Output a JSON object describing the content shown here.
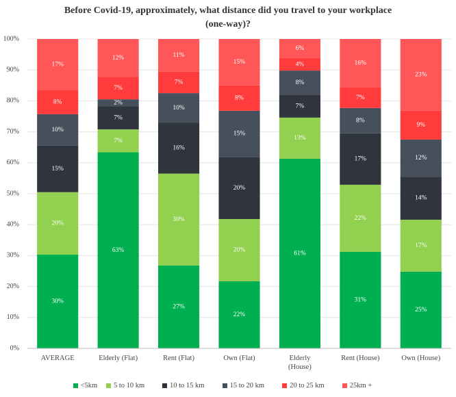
{
  "chart_data": {
    "type": "stacked_bar",
    "title": "Before Covid-19, approximately, what distance did you travel  to your workplace (one-way)?",
    "categories": [
      "AVERAGE",
      "Elderly (Flat)",
      "Rent (Flat)",
      "Own (Flat)",
      "Elderly (House)",
      "Rent (House)",
      "Own (House)"
    ],
    "series": [
      {
        "name": "<5km",
        "color": "#00b050",
        "values": [
          30.3,
          63.4,
          26.8,
          21.7,
          61.3,
          31.2,
          24.8
        ],
        "value_labels": [
          "30%",
          "63%",
          "27%",
          "22%",
          "61%",
          "31%",
          "25%"
        ]
      },
      {
        "name": "5 to 10 km",
        "color": "#92d050",
        "values": [
          20.2,
          7.4,
          29.7,
          20.1,
          13.3,
          21.7,
          16.8
        ],
        "value_labels": [
          "20%",
          "7%",
          "30%",
          "20%",
          "13%",
          "22%",
          "17%"
        ]
      },
      {
        "name": "10 to 15 km",
        "color": "#2f343d",
        "values": [
          15.0,
          7.4,
          16.4,
          20.1,
          7.4,
          16.6,
          13.9
        ],
        "value_labels": [
          "15%",
          "7%",
          "16%",
          "20%",
          "7%",
          "17%",
          "14%"
        ]
      },
      {
        "name": "15 to 20 km",
        "color": "#46505c",
        "values": [
          10.2,
          2.3,
          9.6,
          14.9,
          7.8,
          8.2,
          12.0
        ],
        "value_labels": [
          "10%",
          "2%",
          "10%",
          "15%",
          "8%",
          "8%",
          "12%"
        ]
      },
      {
        "name": "20 to 25 km",
        "color": "#ff3b3b",
        "values": [
          7.8,
          7.3,
          6.9,
          8.2,
          4.0,
          6.6,
          9.3
        ],
        "value_labels": [
          "8%",
          "7%",
          "7%",
          "8%",
          "4%",
          "7%",
          "9%"
        ]
      },
      {
        "name": "25km +",
        "color": "#ff5757",
        "values": [
          16.5,
          12.2,
          10.6,
          15.0,
          6.2,
          15.7,
          23.2
        ],
        "value_labels": [
          "17%",
          "12%",
          "11%",
          "15%",
          "6%",
          "16%",
          "23%"
        ]
      }
    ],
    "ylim": [
      0,
      100
    ],
    "yticks": [
      {
        "value": 0,
        "label": "0%"
      },
      {
        "value": 10,
        "label": "10%"
      },
      {
        "value": 20,
        "label": "20%"
      },
      {
        "value": 30,
        "label": "30%"
      },
      {
        "value": 40,
        "label": "40%"
      },
      {
        "value": 50,
        "label": "50%"
      },
      {
        "value": 60,
        "label": "60%"
      },
      {
        "value": 70,
        "label": "70%"
      },
      {
        "value": 80,
        "label": "80%"
      },
      {
        "value": 90,
        "label": "90%"
      },
      {
        "value": 100,
        "label": "100%"
      }
    ],
    "grid": true,
    "legend": "bottom"
  }
}
